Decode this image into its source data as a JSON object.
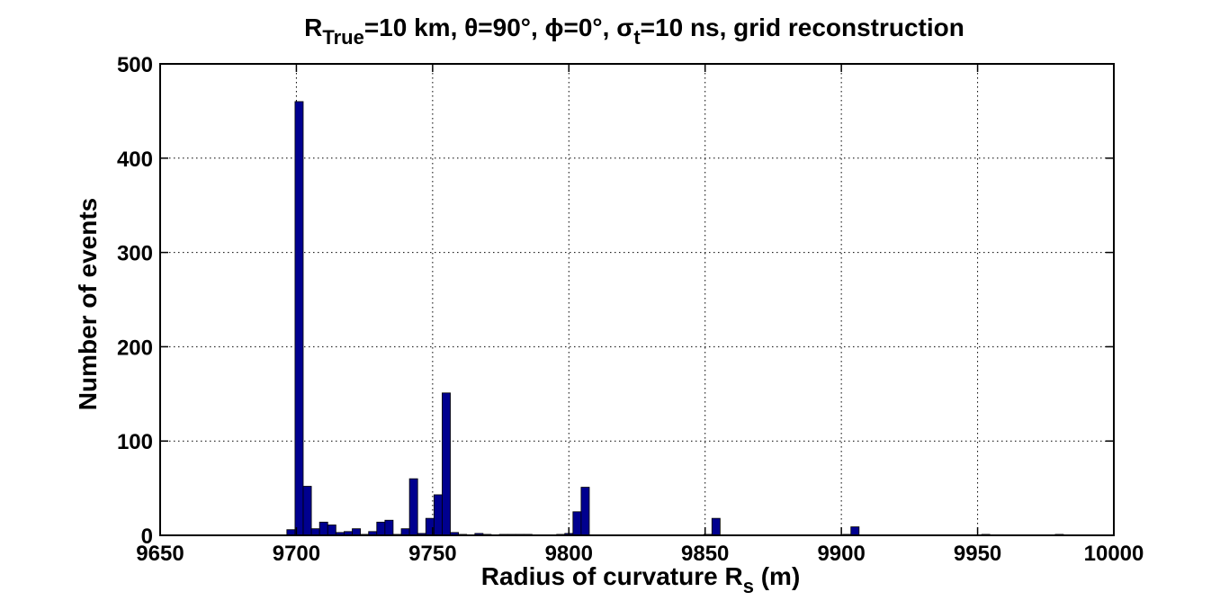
{
  "chart_data": {
    "type": "bar",
    "title": {
      "parts": [
        {
          "text": "R"
        },
        {
          "text": "True",
          "sub": true
        },
        {
          "text": "=10 km, θ=90°, ϕ=0°, "
        },
        {
          "text": "σ"
        },
        {
          "text": "t",
          "sub": true
        },
        {
          "text": "=10 ns, grid reconstruction"
        }
      ]
    },
    "xlabel": {
      "parts": [
        {
          "text": "Radius of curvature R"
        },
        {
          "text": "s",
          "sub": true
        },
        {
          "text": " (m)"
        }
      ]
    },
    "ylabel": "Number of events",
    "xlim": [
      9650,
      10000
    ],
    "ylim": [
      0,
      500
    ],
    "xticks": [
      9650,
      9700,
      9750,
      9800,
      9850,
      9900,
      9950,
      10000
    ],
    "yticks": [
      0,
      100,
      200,
      300,
      400,
      500
    ],
    "grid": "dotted",
    "bin_width": 3,
    "bar_color": "#00008f",
    "bins": [
      {
        "x": 9698,
        "y": 6
      },
      {
        "x": 9701,
        "y": 460
      },
      {
        "x": 9704,
        "y": 52
      },
      {
        "x": 9707,
        "y": 7
      },
      {
        "x": 9710,
        "y": 14
      },
      {
        "x": 9713,
        "y": 11
      },
      {
        "x": 9716,
        "y": 3
      },
      {
        "x": 9719,
        "y": 4
      },
      {
        "x": 9722,
        "y": 7
      },
      {
        "x": 9725,
        "y": 1
      },
      {
        "x": 9728,
        "y": 4
      },
      {
        "x": 9731,
        "y": 14
      },
      {
        "x": 9734,
        "y": 16
      },
      {
        "x": 9737,
        "y": 1
      },
      {
        "x": 9740,
        "y": 7
      },
      {
        "x": 9743,
        "y": 60
      },
      {
        "x": 9746,
        "y": 2
      },
      {
        "x": 9749,
        "y": 18
      },
      {
        "x": 9752,
        "y": 43
      },
      {
        "x": 9755,
        "y": 151
      },
      {
        "x": 9758,
        "y": 3
      },
      {
        "x": 9761,
        "y": 1
      },
      {
        "x": 9767,
        "y": 2
      },
      {
        "x": 9770,
        "y": 1
      },
      {
        "x": 9776,
        "y": 1
      },
      {
        "x": 9779,
        "y": 1
      },
      {
        "x": 9782,
        "y": 1
      },
      {
        "x": 9785,
        "y": 1
      },
      {
        "x": 9797,
        "y": 1
      },
      {
        "x": 9800,
        "y": 2
      },
      {
        "x": 9803,
        "y": 25
      },
      {
        "x": 9806,
        "y": 51
      },
      {
        "x": 9851,
        "y": 1
      },
      {
        "x": 9854,
        "y": 18
      },
      {
        "x": 9902,
        "y": 1
      },
      {
        "x": 9905,
        "y": 9
      },
      {
        "x": 9953,
        "y": 1
      },
      {
        "x": 9980,
        "y": 1
      }
    ]
  }
}
